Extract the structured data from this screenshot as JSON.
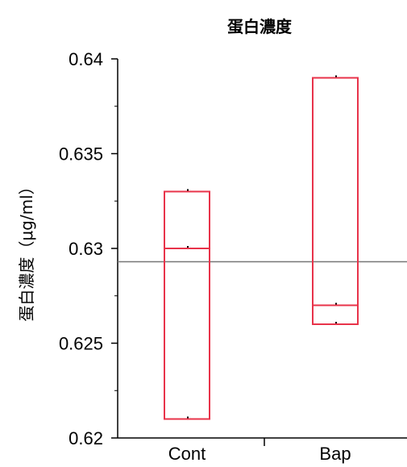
{
  "chart_data": {
    "type": "box",
    "title": "蛋白濃度",
    "ylabel": "蛋白濃度（μg/ml）",
    "xlabel": "",
    "ylim": [
      0.62,
      0.64
    ],
    "yticks": [
      0.62,
      0.625,
      0.63,
      0.635,
      0.64
    ],
    "ytick_labels": [
      "0.62",
      "0.625",
      "0.63",
      "0.635",
      "0.64"
    ],
    "categories": [
      "Cont",
      "Bap"
    ],
    "boxes": [
      {
        "category": "Cont",
        "min": 0.621,
        "q1": 0.621,
        "median": 0.63,
        "q3": 0.633,
        "max": 0.633
      },
      {
        "category": "Bap",
        "min": 0.626,
        "q1": 0.626,
        "median": 0.627,
        "q3": 0.639,
        "max": 0.639
      }
    ],
    "reference_line": 0.6293,
    "colors": {
      "box": "#e8334a",
      "axis": "#000000",
      "reference": "#777777"
    },
    "grid": false
  }
}
